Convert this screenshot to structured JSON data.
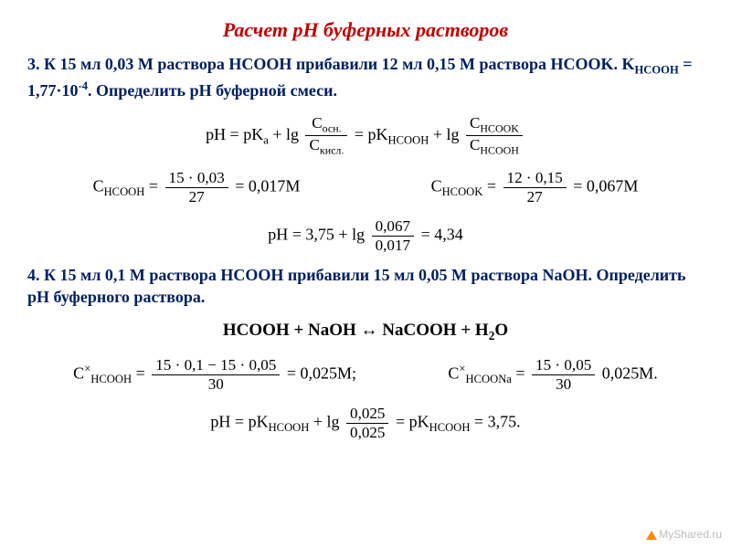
{
  "title": "Расчет рН буферных растворов",
  "problem3": {
    "text": "3. К 15 мл 0,03 М раствора HCOOH прибавили 12 мл 0,15 М раствора HCOOK. K",
    "sub": "HCOOH",
    "text2": " = 1,77·10",
    "sup": "-4",
    "text3": ". Определить рН буферной смеси."
  },
  "f3_main": {
    "lhs": "pH = pK",
    "sub_a": "a",
    "plus": " + lg ",
    "frac1_num": "C",
    "frac1_num_sub": "осн.",
    "frac1_den": "C",
    "frac1_den_sub": "кисл.",
    "eq": " = pK",
    "sub_h": "HCOOH",
    "plus2": " + lg ",
    "frac2_num": "C",
    "frac2_num_sub": "HCOOK",
    "frac2_den": "C",
    "frac2_den_sub": "HCOOH"
  },
  "f3_c1": {
    "lhs": "C",
    "lhs_sub": "HCOOH",
    "eq": " = ",
    "num": "15 · 0,03",
    "den": "27",
    "rhs": " = 0,017M"
  },
  "f3_c2": {
    "lhs": "C",
    "lhs_sub": "HCOOK",
    "eq": " = ",
    "num": "12 · 0,15",
    "den": "27",
    "rhs": " = 0,067M"
  },
  "f3_ph": {
    "lhs": "pH = 3,75 + lg ",
    "num": "0,067",
    "den": "0,017",
    "rhs": " = 4,34"
  },
  "problem4": "4. К 15 мл 0,1 М раствора HCOOH прибавили 15 мл 0,05 М раствора NaOH. Определить рН буферного раствора.",
  "reaction": "HCOOH + NaOH ↔ NaCOOH + H",
  "reaction_sub": "2",
  "reaction_tail": "O",
  "f4_c1": {
    "lhs": "C",
    "lhs_sup": "×",
    "lhs_sub": "HCOOH",
    "eq": " = ",
    "num": "15 · 0,1 − 15 · 0,05",
    "den": "30",
    "rhs": " = 0,025M;"
  },
  "f4_c2": {
    "lhs": "C",
    "lhs_sup": "×",
    "lhs_sub": "HCOONa",
    "eq": " = ",
    "num": "15 · 0,05",
    "den": "30",
    "rhs": " 0,025M."
  },
  "f4_ph": {
    "lhs": "pH = pK",
    "sub1": "HCOOH",
    "mid": " + lg ",
    "num": "0,025",
    "den": "0,025",
    "eq": " = pK",
    "sub2": "HCOOH",
    "rhs": " = 3,75."
  },
  "watermark": "MyShared.ru"
}
